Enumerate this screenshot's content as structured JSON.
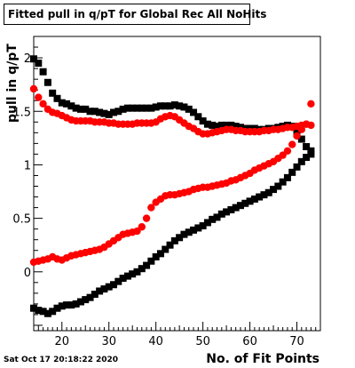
{
  "chart_data": {
    "type": "scatter",
    "title": "Fitted pull in q/pT for Global Rec All NoHits",
    "xlabel": "No. of Fit Points",
    "ylabel": "pull in q/pT",
    "timestamp": "Sat Oct 17 20:18:22 2020",
    "xlim": [
      14,
      75
    ],
    "ylim": [
      -0.55,
      2.2
    ],
    "x_ticks": [
      20,
      30,
      40,
      50,
      60,
      70
    ],
    "y_ticks": [
      0,
      0.5,
      1,
      1.5,
      2
    ],
    "y_tick_labels": [
      "0",
      "0.5",
      "1",
      "1.5",
      "2"
    ],
    "grid": false,
    "series": [
      {
        "color": "#000000",
        "marker": "square",
        "x": [
          14,
          15,
          16,
          17,
          18,
          19,
          20,
          21,
          22,
          23,
          24,
          25,
          26,
          27,
          28,
          29,
          30,
          31,
          32,
          33,
          34,
          35,
          36,
          37,
          38,
          39,
          40,
          41,
          42,
          43,
          44,
          45,
          46,
          47,
          48,
          49,
          50,
          51,
          52,
          53,
          54,
          55,
          56,
          57,
          58,
          59,
          60,
          61,
          62,
          63,
          64,
          65,
          66,
          67,
          68,
          69,
          70,
          71,
          72,
          73
        ],
        "y": [
          1.99,
          1.95,
          1.87,
          1.77,
          1.67,
          1.62,
          1.58,
          1.57,
          1.55,
          1.53,
          1.52,
          1.52,
          1.5,
          1.5,
          1.49,
          1.48,
          1.47,
          1.49,
          1.5,
          1.52,
          1.53,
          1.53,
          1.53,
          1.53,
          1.53,
          1.53,
          1.54,
          1.55,
          1.55,
          1.55,
          1.56,
          1.55,
          1.54,
          1.52,
          1.49,
          1.45,
          1.41,
          1.38,
          1.37,
          1.36,
          1.37,
          1.37,
          1.37,
          1.36,
          1.35,
          1.34,
          1.34,
          1.34,
          1.33,
          1.33,
          1.34,
          1.34,
          1.35,
          1.36,
          1.37,
          1.36,
          1.31,
          1.24,
          1.17,
          1.13
        ]
      },
      {
        "color": "#000000",
        "marker": "square",
        "x": [
          14,
          15,
          16,
          17,
          18,
          19,
          20,
          21,
          22,
          23,
          24,
          25,
          26,
          27,
          28,
          29,
          30,
          31,
          32,
          33,
          34,
          35,
          36,
          37,
          38,
          39,
          40,
          41,
          42,
          43,
          44,
          45,
          46,
          47,
          48,
          49,
          50,
          51,
          52,
          53,
          54,
          55,
          56,
          57,
          58,
          59,
          60,
          61,
          62,
          63,
          64,
          65,
          66,
          67,
          68,
          69,
          70,
          71,
          72,
          73
        ],
        "y": [
          -0.34,
          -0.36,
          -0.37,
          -0.39,
          -0.37,
          -0.34,
          -0.32,
          -0.31,
          -0.31,
          -0.3,
          -0.28,
          -0.26,
          -0.24,
          -0.21,
          -0.18,
          -0.16,
          -0.14,
          -0.12,
          -0.09,
          -0.06,
          -0.04,
          -0.02,
          0.0,
          0.03,
          0.06,
          0.1,
          0.14,
          0.17,
          0.21,
          0.25,
          0.29,
          0.32,
          0.35,
          0.37,
          0.39,
          0.41,
          0.43,
          0.46,
          0.49,
          0.51,
          0.54,
          0.56,
          0.58,
          0.6,
          0.62,
          0.64,
          0.66,
          0.68,
          0.7,
          0.72,
          0.74,
          0.77,
          0.8,
          0.84,
          0.88,
          0.93,
          0.98,
          1.03,
          1.07,
          1.1
        ]
      },
      {
        "color": "#ff0000",
        "marker": "circle",
        "x": [
          14,
          15,
          16,
          17,
          18,
          19,
          20,
          21,
          22,
          23,
          24,
          25,
          26,
          27,
          28,
          29,
          30,
          31,
          32,
          33,
          34,
          35,
          36,
          37,
          38,
          39,
          40,
          41,
          42,
          43,
          44,
          45,
          46,
          47,
          48,
          49,
          50,
          51,
          52,
          53,
          54,
          55,
          56,
          57,
          58,
          59,
          60,
          61,
          62,
          63,
          64,
          65,
          66,
          67,
          68,
          69,
          70,
          71,
          72,
          73
        ],
        "y": [
          1.71,
          1.63,
          1.57,
          1.52,
          1.49,
          1.48,
          1.46,
          1.44,
          1.42,
          1.41,
          1.41,
          1.41,
          1.41,
          1.4,
          1.4,
          1.4,
          1.39,
          1.39,
          1.38,
          1.38,
          1.38,
          1.38,
          1.39,
          1.39,
          1.39,
          1.39,
          1.4,
          1.43,
          1.45,
          1.46,
          1.45,
          1.42,
          1.39,
          1.36,
          1.34,
          1.31,
          1.29,
          1.29,
          1.3,
          1.31,
          1.32,
          1.33,
          1.33,
          1.32,
          1.32,
          1.31,
          1.31,
          1.31,
          1.31,
          1.32,
          1.32,
          1.33,
          1.33,
          1.34,
          1.35,
          1.35,
          1.36,
          1.37,
          1.38,
          1.37
        ]
      },
      {
        "color": "#ff0000",
        "marker": "circle",
        "x": [
          14,
          15,
          16,
          17,
          18,
          19,
          20,
          21,
          22,
          23,
          24,
          25,
          26,
          27,
          28,
          29,
          30,
          31,
          32,
          33,
          34,
          35,
          36,
          37,
          38,
          39,
          40,
          41,
          42,
          43,
          44,
          45,
          46,
          47,
          48,
          49,
          50,
          51,
          52,
          53,
          54,
          55,
          56,
          57,
          58,
          59,
          60,
          61,
          62,
          63,
          64,
          65,
          66,
          67,
          68,
          69,
          70,
          71,
          72,
          73
        ],
        "y": [
          0.09,
          0.1,
          0.11,
          0.12,
          0.14,
          0.12,
          0.11,
          0.13,
          0.15,
          0.16,
          0.17,
          0.18,
          0.19,
          0.2,
          0.21,
          0.23,
          0.26,
          0.29,
          0.32,
          0.35,
          0.36,
          0.37,
          0.38,
          0.42,
          0.5,
          0.6,
          0.65,
          0.68,
          0.71,
          0.72,
          0.72,
          0.73,
          0.74,
          0.75,
          0.77,
          0.78,
          0.79,
          0.79,
          0.8,
          0.81,
          0.82,
          0.83,
          0.85,
          0.86,
          0.88,
          0.9,
          0.92,
          0.95,
          0.97,
          0.99,
          1.01,
          1.03,
          1.06,
          1.09,
          1.13,
          1.19,
          1.27,
          1.33,
          1.38,
          1.57
        ]
      }
    ]
  }
}
